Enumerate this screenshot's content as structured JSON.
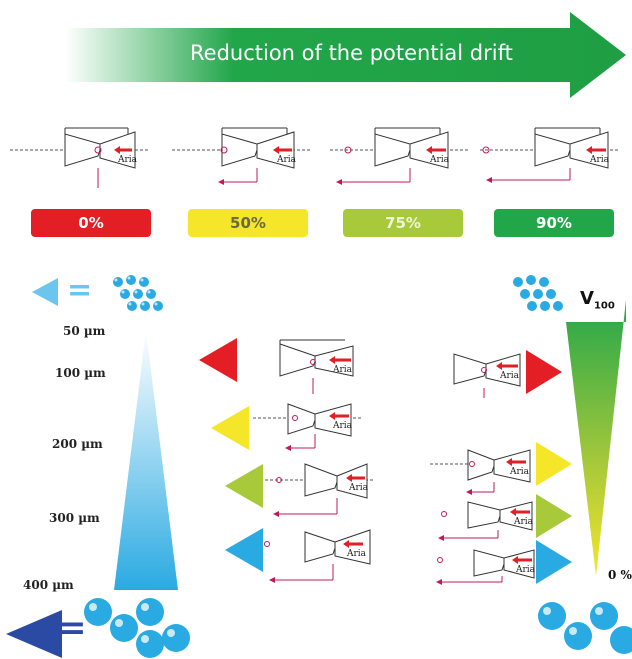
{
  "banner": {
    "title": "Reduction of the potential drift"
  },
  "reduction_levels": [
    {
      "label": "0%",
      "color": "#e31e24"
    },
    {
      "label": "50%",
      "color": "#f5e62a"
    },
    {
      "label": "75%",
      "color": "#a8c93a"
    },
    {
      "label": "90%",
      "color": "#22a64a"
    }
  ],
  "nozzle_label": "Aria",
  "droplet_sizes": [
    "50 µm",
    "100 µm",
    "200 µm",
    "300 µm",
    "400 µm"
  ],
  "volume_label": {
    "letter": "V",
    "subscript": "100"
  },
  "volume_bottom_label": "0 %",
  "equals_sign": "=",
  "colors": {
    "fine_arrow": "#6cc5ef",
    "coarse_arrow": "#2b4aa3",
    "droplet": "#2aaae2",
    "pink": "#c2185b"
  }
}
